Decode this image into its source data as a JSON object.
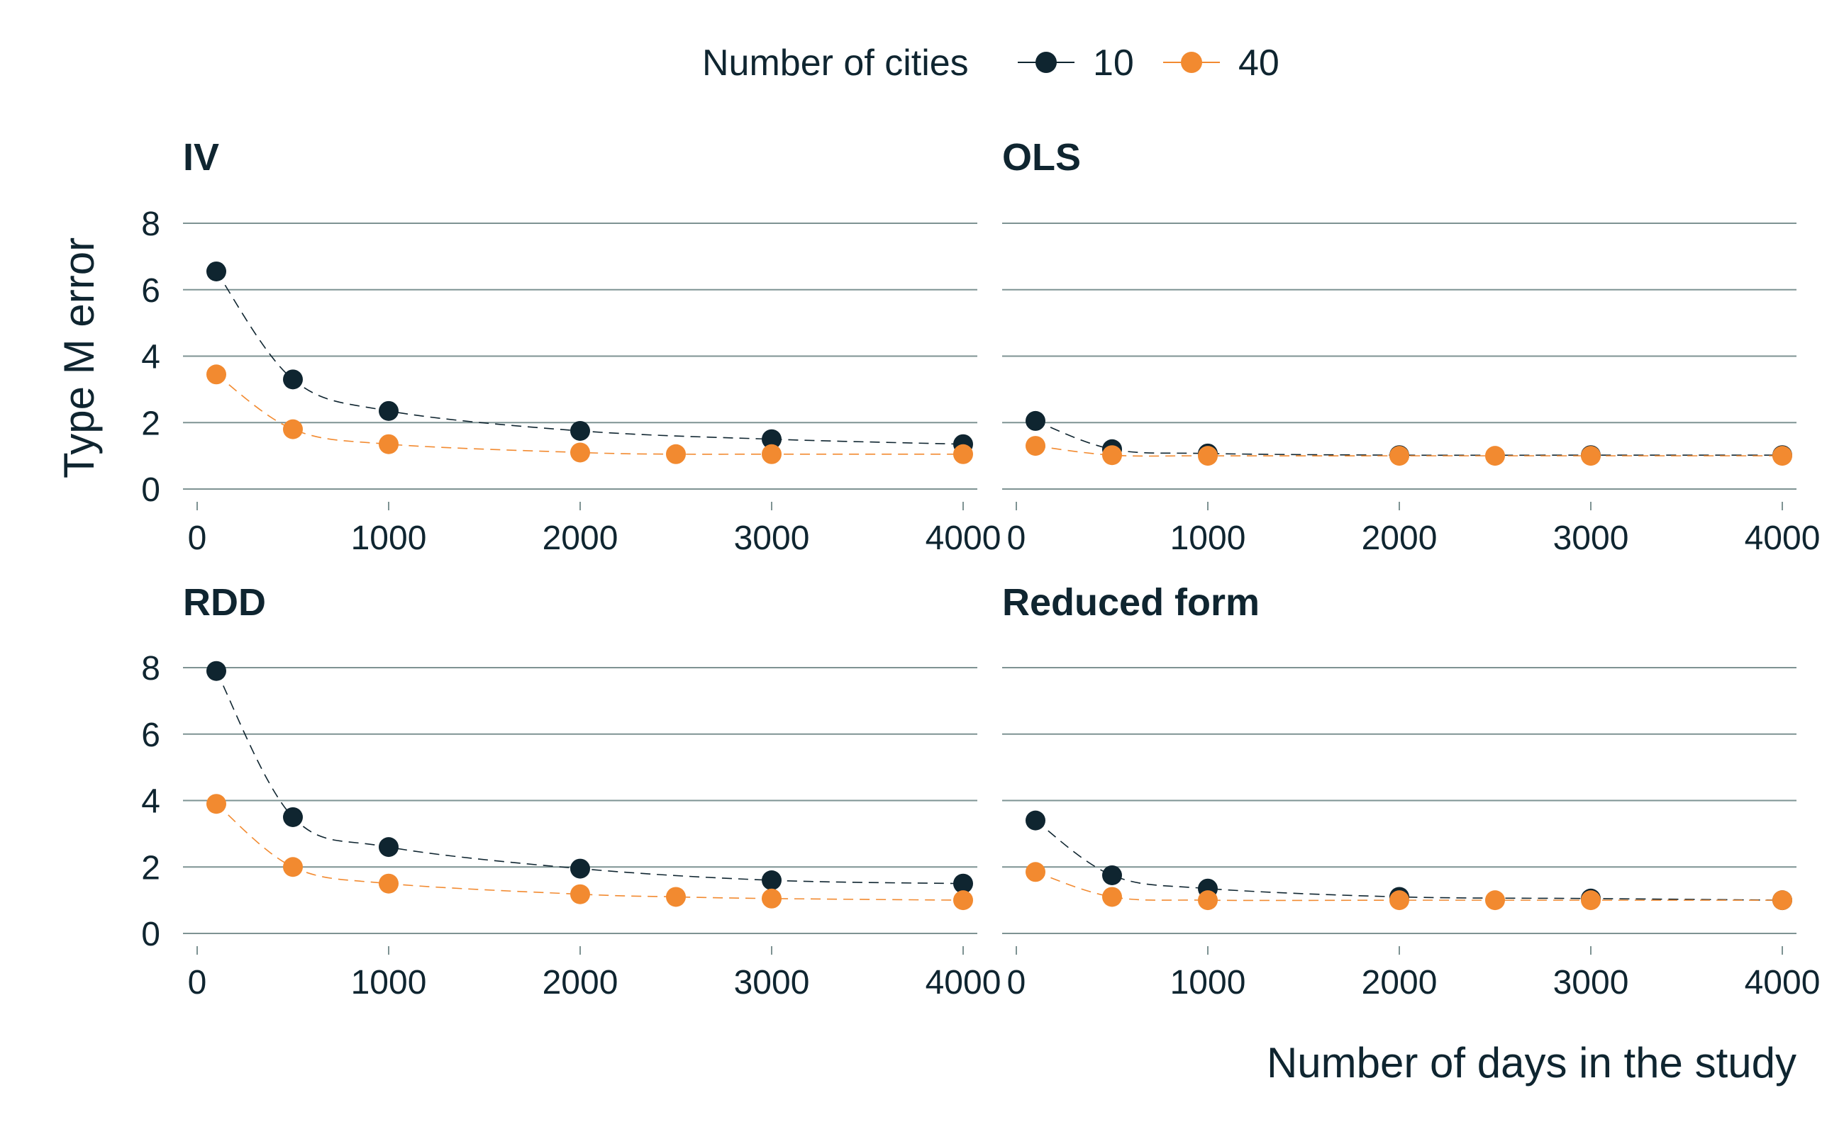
{
  "chart_data": {
    "type": "line",
    "xlabel": "Number of days in the study",
    "ylabel": "Type M error",
    "x_ticks": [
      "0",
      "1000",
      "2000",
      "3000",
      "4000"
    ],
    "x_tick_values": [
      0,
      1000,
      2000,
      3000,
      4000
    ],
    "y_ticks": [
      "0",
      "2",
      "4",
      "6",
      "8"
    ],
    "y_tick_values": [
      0,
      2,
      4,
      6,
      8
    ],
    "xlim": [
      0,
      4000
    ],
    "ylim": [
      0,
      8
    ],
    "legend": {
      "title": "Number of cities",
      "position": "top",
      "entries": [
        {
          "label": "10",
          "color": "#0f2530"
        },
        {
          "label": "40",
          "color": "#f28a30"
        }
      ]
    },
    "panels": [
      {
        "title": "IV",
        "x": [
          100,
          500,
          1000,
          2000,
          2500,
          3000,
          4000
        ],
        "series": [
          {
            "name": "10",
            "color": "#0f2530",
            "values": [
              6.55,
              3.3,
              2.35,
              1.75,
              null,
              1.5,
              1.35
            ]
          },
          {
            "name": "40",
            "color": "#f28a30",
            "values": [
              3.45,
              1.8,
              1.35,
              1.1,
              1.05,
              1.05,
              1.05
            ]
          }
        ]
      },
      {
        "title": "OLS",
        "x": [
          100,
          500,
          1000,
          2000,
          2500,
          3000,
          4000
        ],
        "series": [
          {
            "name": "10",
            "color": "#0f2530",
            "values": [
              2.05,
              1.2,
              1.07,
              1.02,
              null,
              1.02,
              1.02
            ]
          },
          {
            "name": "40",
            "color": "#f28a30",
            "values": [
              1.3,
              1.02,
              1.0,
              1.0,
              1.0,
              1.0,
              1.0
            ]
          }
        ]
      },
      {
        "title": "RDD",
        "x": [
          100,
          500,
          1000,
          2000,
          2500,
          3000,
          4000
        ],
        "series": [
          {
            "name": "10",
            "color": "#0f2530",
            "values": [
              7.9,
              3.5,
              2.6,
              1.95,
              null,
              1.6,
              1.5
            ]
          },
          {
            "name": "40",
            "color": "#f28a30",
            "values": [
              3.9,
              2.0,
              1.5,
              1.18,
              1.1,
              1.05,
              1.0
            ]
          }
        ]
      },
      {
        "title": "Reduced form",
        "x": [
          100,
          500,
          1000,
          2000,
          2500,
          3000,
          4000
        ],
        "series": [
          {
            "name": "10",
            "color": "#0f2530",
            "values": [
              3.4,
              1.75,
              1.35,
              1.1,
              null,
              1.05,
              1.0
            ]
          },
          {
            "name": "40",
            "color": "#f28a30",
            "values": [
              1.85,
              1.1,
              1.0,
              1.0,
              1.0,
              1.0,
              1.0
            ]
          }
        ]
      }
    ]
  }
}
